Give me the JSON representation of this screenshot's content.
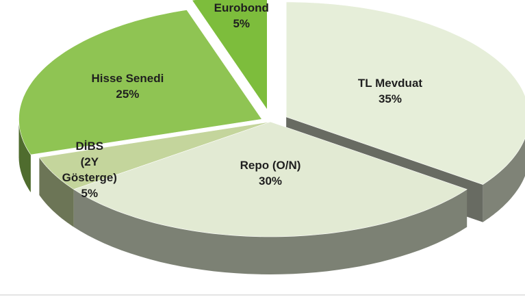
{
  "chart_data": {
    "type": "pie",
    "categories": [
      "TL Mevduat",
      "Repo (O/N)",
      "DİBS\n(2Y\nGösterge)",
      "Hisse Senedi",
      "Eurobond"
    ],
    "values": [
      35,
      30,
      5,
      25,
      5
    ],
    "value_labels": [
      "35%",
      "30%",
      "5%",
      "25%",
      "5%"
    ],
    "colors": [
      "#e6eed9",
      "#e2ead3",
      "#c4d59c",
      "#8fc453",
      "#7dbd3c"
    ]
  }
}
